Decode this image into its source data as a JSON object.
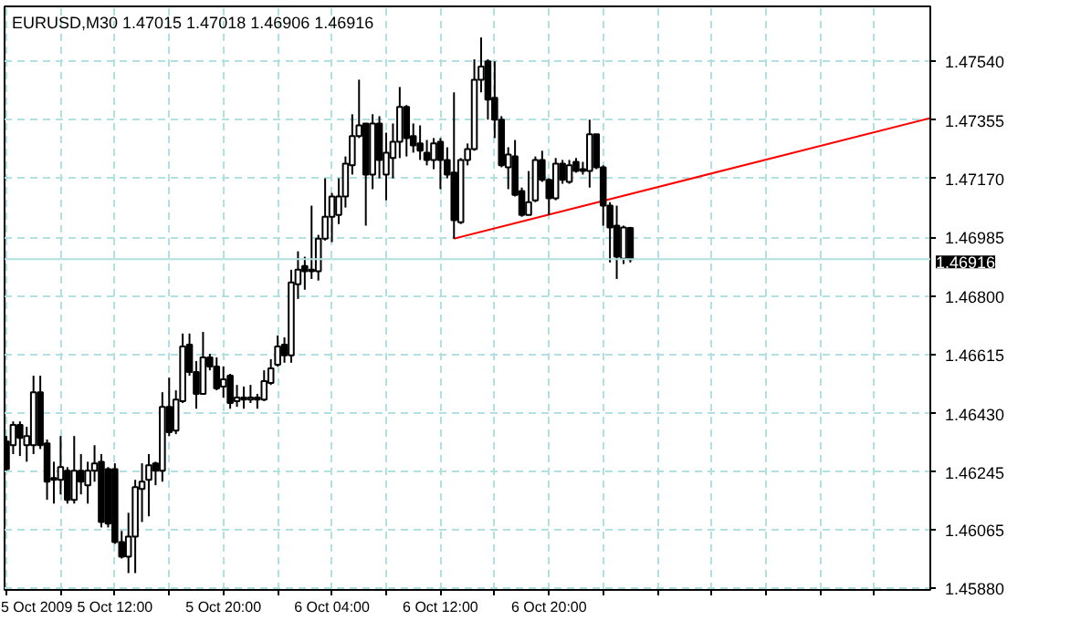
{
  "chart_data": {
    "type": "candlestick",
    "title": "EURUSD,M30  1.47015 1.47018 1.46906 1.46916",
    "xlim": [
      "2009-10-05T03:52",
      "2009-10-08T00:07"
    ],
    "ylim": [
      1.45874,
      1.47713
    ],
    "xticks": [
      {
        "value": "2009-10-05T04:00",
        "label": "5 Oct 2009"
      },
      {
        "value": "2009-10-05T08:00",
        "label": null
      },
      {
        "value": "2009-10-05T12:00",
        "label": "5 Oct 12:00"
      },
      {
        "value": "2009-10-05T16:00",
        "label": null
      },
      {
        "value": "2009-10-05T20:00",
        "label": "5 Oct 20:00"
      },
      {
        "value": "2009-10-06T00:00",
        "label": null
      },
      {
        "value": "2009-10-06T04:00",
        "label": "6 Oct 04:00"
      },
      {
        "value": "2009-10-06T08:00",
        "label": null
      },
      {
        "value": "2009-10-06T12:00",
        "label": "6 Oct 12:00"
      },
      {
        "value": "2009-10-06T16:00",
        "label": null
      },
      {
        "value": "2009-10-06T20:00",
        "label": "6 Oct 20:00"
      },
      {
        "value": "2009-10-07T00:00",
        "label": null
      },
      {
        "value": "2009-10-07T04:00",
        "label": null
      },
      {
        "value": "2009-10-07T08:00",
        "label": null
      },
      {
        "value": "2009-10-07T12:00",
        "label": null
      },
      {
        "value": "2009-10-07T16:00",
        "label": null
      },
      {
        "value": "2009-10-07T20:00",
        "label": null
      }
    ],
    "yticks": [
      {
        "value": 1.4588,
        "label": "1.45880"
      },
      {
        "value": 1.46065,
        "label": "1.46065"
      },
      {
        "value": 1.46245,
        "label": "1.46245"
      },
      {
        "value": 1.4643,
        "label": "1.46430"
      },
      {
        "value": 1.46615,
        "label": "1.46615"
      },
      {
        "value": 1.468,
        "label": "1.46800"
      },
      {
        "value": 1.46985,
        "label": "1.46985"
      },
      {
        "value": 1.4717,
        "label": "1.47170"
      },
      {
        "value": 1.47355,
        "label": "1.47355"
      },
      {
        "value": 1.4754,
        "label": "1.47540"
      }
    ],
    "grid": true,
    "ref_lines": [
      {
        "axis": "y",
        "value": 1.46916,
        "label": "1.46916",
        "color": "#b0e0e0"
      }
    ],
    "series": [
      {
        "x": [
          "2009-10-05T04:00",
          "2009-10-05T04:30",
          "2009-10-05T05:00",
          "2009-10-05T05:30",
          "2009-10-05T06:00",
          "2009-10-05T06:30",
          "2009-10-05T07:00",
          "2009-10-05T07:30",
          "2009-10-05T08:00",
          "2009-10-05T08:30",
          "2009-10-05T09:00",
          "2009-10-05T09:30",
          "2009-10-05T10:00",
          "2009-10-05T10:30",
          "2009-10-05T11:00",
          "2009-10-05T11:30",
          "2009-10-05T12:00",
          "2009-10-05T12:30",
          "2009-10-05T13:00",
          "2009-10-05T13:30",
          "2009-10-05T14:00",
          "2009-10-05T14:30",
          "2009-10-05T15:00",
          "2009-10-05T15:30",
          "2009-10-05T16:00",
          "2009-10-05T16:30",
          "2009-10-05T17:00",
          "2009-10-05T17:30",
          "2009-10-05T18:00",
          "2009-10-05T18:30",
          "2009-10-05T19:00",
          "2009-10-05T19:30",
          "2009-10-05T20:00",
          "2009-10-05T20:30",
          "2009-10-05T21:00",
          "2009-10-05T21:30",
          "2009-10-05T22:00",
          "2009-10-05T22:30",
          "2009-10-05T23:00",
          "2009-10-05T23:30",
          "2009-10-06T00:00",
          "2009-10-06T00:30",
          "2009-10-06T01:00",
          "2009-10-06T01:30",
          "2009-10-06T02:00",
          "2009-10-06T02:30",
          "2009-10-06T03:00",
          "2009-10-06T03:30",
          "2009-10-06T04:00",
          "2009-10-06T04:30",
          "2009-10-06T05:00",
          "2009-10-06T05:30",
          "2009-10-06T06:00",
          "2009-10-06T06:30",
          "2009-10-06T07:00",
          "2009-10-06T07:30",
          "2009-10-06T08:00",
          "2009-10-06T08:30",
          "2009-10-06T09:00",
          "2009-10-06T09:30",
          "2009-10-06T10:00",
          "2009-10-06T10:30",
          "2009-10-06T11:00",
          "2009-10-06T11:30",
          "2009-10-06T12:00",
          "2009-10-06T12:30",
          "2009-10-06T13:00",
          "2009-10-06T13:30",
          "2009-10-06T14:00",
          "2009-10-06T14:30",
          "2009-10-06T15:00",
          "2009-10-06T15:30",
          "2009-10-06T16:00",
          "2009-10-06T16:30",
          "2009-10-06T17:00",
          "2009-10-06T17:30",
          "2009-10-06T18:00",
          "2009-10-06T18:30",
          "2009-10-06T19:00",
          "2009-10-06T19:30",
          "2009-10-06T20:00",
          "2009-10-06T20:30",
          "2009-10-06T21:00",
          "2009-10-06T21:30",
          "2009-10-06T22:00",
          "2009-10-06T22:30",
          "2009-10-06T23:00",
          "2009-10-06T23:30",
          "2009-10-07T00:00",
          "2009-10-07T00:30",
          "2009-10-07T01:00",
          "2009-10-07T01:30",
          "2009-10-07T02:00"
        ],
        "ohlc": [
          [
            1.46342,
            1.46359,
            1.4625,
            1.46255
          ],
          [
            1.4633,
            1.46405,
            1.46302,
            1.46394
          ],
          [
            1.46394,
            1.46405,
            1.46296,
            1.46353
          ],
          [
            1.4633,
            1.46388,
            1.46278,
            1.46359
          ],
          [
            1.4633,
            1.46549,
            1.46302,
            1.46497
          ],
          [
            1.46497,
            1.46549,
            1.46318,
            1.4633
          ],
          [
            1.46336,
            1.46348,
            1.46158,
            1.46215
          ],
          [
            1.46221,
            1.46278,
            1.46146,
            1.46227
          ],
          [
            1.46221,
            1.46359,
            1.46175,
            1.46261
          ],
          [
            1.4625,
            1.46261,
            1.46146,
            1.46158
          ],
          [
            1.46158,
            1.46359,
            1.46146,
            1.4625
          ],
          [
            1.4625,
            1.46302,
            1.46175,
            1.46215
          ],
          [
            1.46204,
            1.46278,
            1.46146,
            1.4625
          ],
          [
            1.4625,
            1.4633,
            1.46215,
            1.46273
          ],
          [
            1.46278,
            1.46302,
            1.46071,
            1.46088
          ],
          [
            1.46255,
            1.46261,
            1.46071,
            1.46083
          ],
          [
            1.46255,
            1.46273,
            1.46019,
            1.46025
          ],
          [
            1.46025,
            1.4606,
            1.45973,
            1.45979
          ],
          [
            1.45979,
            1.46117,
            1.45927,
            1.46042
          ],
          [
            1.46042,
            1.46221,
            1.45927,
            1.46198
          ],
          [
            1.46192,
            1.46273,
            1.46088,
            1.46215
          ],
          [
            1.46221,
            1.46302,
            1.46106,
            1.46267
          ],
          [
            1.46273,
            1.46278,
            1.46204,
            1.4625
          ],
          [
            1.4625,
            1.46497,
            1.46215,
            1.46451
          ],
          [
            1.46451,
            1.46543,
            1.46359,
            1.46371
          ],
          [
            1.46376,
            1.46503,
            1.46365,
            1.46474
          ],
          [
            1.46469,
            1.46682,
            1.46463,
            1.46641
          ],
          [
            1.46647,
            1.46682,
            1.46549,
            1.46561
          ],
          [
            1.46561,
            1.46595,
            1.46445,
            1.46492
          ],
          [
            1.46492,
            1.46687,
            1.46492,
            1.46607
          ],
          [
            1.46607,
            1.46618,
            1.46566,
            1.46578
          ],
          [
            1.46578,
            1.46607,
            1.46503,
            1.46509
          ],
          [
            1.46515,
            1.46578,
            1.4648,
            1.46538
          ],
          [
            1.46549,
            1.46555,
            1.46445,
            1.46463
          ],
          [
            1.46469,
            1.4652,
            1.46451,
            1.4648
          ],
          [
            1.4648,
            1.46515,
            1.46445,
            1.46474
          ],
          [
            1.46474,
            1.4652,
            1.46463,
            1.4648
          ],
          [
            1.4648,
            1.46492,
            1.46445,
            1.46474
          ],
          [
            1.46474,
            1.46566,
            1.46469,
            1.46532
          ],
          [
            1.46526,
            1.46601,
            1.4652,
            1.46572
          ],
          [
            1.46584,
            1.46676,
            1.46578,
            1.46641
          ],
          [
            1.46647,
            1.4667,
            1.4659,
            1.46613
          ],
          [
            1.46613,
            1.46883,
            1.4659,
            1.46843
          ],
          [
            1.46837,
            1.46941,
            1.46791,
            1.46883
          ],
          [
            1.46895,
            1.46924,
            1.4682,
            1.46878
          ],
          [
            1.46883,
            1.47085,
            1.46854,
            1.46878
          ],
          [
            1.46878,
            1.46993,
            1.46849,
            1.46981
          ],
          [
            1.46981,
            1.47171,
            1.46975,
            1.4705
          ],
          [
            1.4705,
            1.47125,
            1.4697,
            1.47114
          ],
          [
            1.47056,
            1.47171,
            1.47027,
            1.47114
          ],
          [
            1.47114,
            1.4724,
            1.47079,
            1.47217
          ],
          [
            1.47212,
            1.47373,
            1.47183,
            1.47304
          ],
          [
            1.47304,
            1.47482,
            1.47298,
            1.47338
          ],
          [
            1.47344,
            1.47344,
            1.47022,
            1.47183
          ],
          [
            1.47183,
            1.47373,
            1.47137,
            1.47344
          ],
          [
            1.47344,
            1.47367,
            1.47171,
            1.47229
          ],
          [
            1.47183,
            1.47315,
            1.47102,
            1.47252
          ],
          [
            1.47235,
            1.47344,
            1.47171,
            1.47286
          ],
          [
            1.47286,
            1.47459,
            1.47235,
            1.47396
          ],
          [
            1.47396,
            1.47402,
            1.4724,
            1.47298
          ],
          [
            1.47304,
            1.47344,
            1.47252,
            1.47275
          ],
          [
            1.47281,
            1.47338,
            1.47229,
            1.47258
          ],
          [
            1.47252,
            1.47292,
            1.47212,
            1.47229
          ],
          [
            1.47229,
            1.47298,
            1.472,
            1.47281
          ],
          [
            1.47286,
            1.47298,
            1.47137,
            1.47229
          ],
          [
            1.47229,
            1.47269,
            1.47171,
            1.47183
          ],
          [
            1.47189,
            1.47442,
            1.46981,
            1.47039
          ],
          [
            1.47033,
            1.47235,
            1.47027,
            1.47229
          ],
          [
            1.47229,
            1.47281,
            1.47212,
            1.47263
          ],
          [
            1.47263,
            1.47546,
            1.47258,
            1.47482
          ],
          [
            1.47482,
            1.47615,
            1.47442,
            1.47523
          ],
          [
            1.4754,
            1.47546,
            1.47356,
            1.47419
          ],
          [
            1.47425,
            1.4754,
            1.47298,
            1.47356
          ],
          [
            1.47356,
            1.47367,
            1.47206,
            1.47212
          ],
          [
            1.47206,
            1.47269,
            1.47137,
            1.47246
          ],
          [
            1.4724,
            1.47292,
            1.47114,
            1.47119
          ],
          [
            1.47131,
            1.47142,
            1.4705,
            1.47056
          ],
          [
            1.47056,
            1.47194,
            1.47056,
            1.47096
          ],
          [
            1.47102,
            1.4724,
            1.47096,
            1.47229
          ],
          [
            1.47229,
            1.47258,
            1.4716,
            1.47166
          ],
          [
            1.47166,
            1.47171,
            1.47056,
            1.47108
          ],
          [
            1.47108,
            1.47235,
            1.47102,
            1.47217
          ],
          [
            1.47217,
            1.47229,
            1.47154,
            1.47166
          ],
          [
            1.4716,
            1.47229,
            1.47154,
            1.47212
          ],
          [
            1.47223,
            1.47235,
            1.47189,
            1.47194
          ],
          [
            1.472,
            1.47223,
            1.47183,
            1.47194
          ],
          [
            1.47194,
            1.47356,
            1.47142,
            1.4731
          ],
          [
            1.4731,
            1.4731,
            1.472,
            1.47206
          ],
          [
            1.47206,
            1.47212,
            1.47022,
            1.47085
          ],
          [
            1.47085,
            1.47096,
            1.46906,
            1.47016
          ],
          [
            1.47022,
            1.47085,
            1.46854,
            1.46924
          ],
          [
            1.46918,
            1.47022,
            1.46901,
            1.47016
          ],
          [
            1.47015,
            1.47018,
            1.46906,
            1.46916
          ]
        ]
      },
      {
        "type": "line",
        "color": "#ff0000",
        "x": [
          "2009-10-06T13:00",
          "2009-10-08T00:07"
        ],
        "values": [
          1.46981,
          1.47361
        ]
      }
    ]
  }
}
